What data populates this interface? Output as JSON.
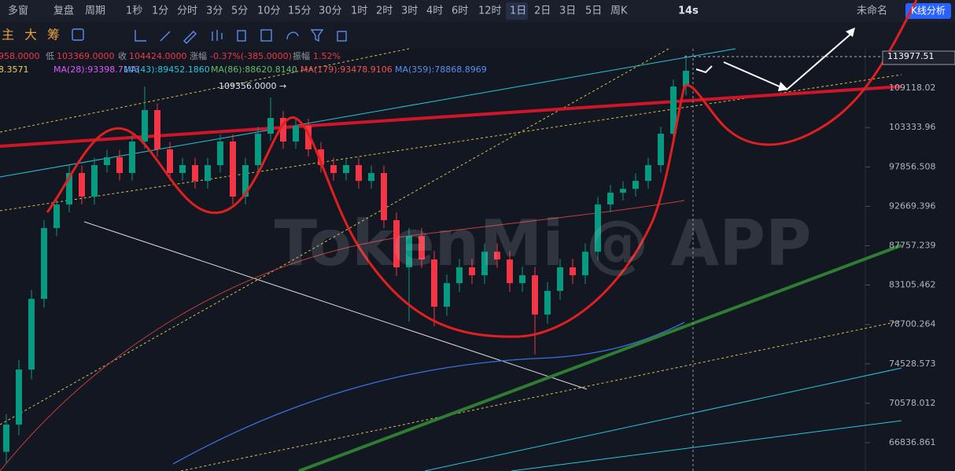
{
  "toolbar": {
    "layout": "多窗",
    "replay": "复盘",
    "period": "周期",
    "periods": [
      "1秒",
      "1分",
      "分时",
      "3分",
      "5分",
      "10分",
      "15分",
      "30分",
      "1时",
      "2时",
      "3时",
      "4时",
      "6时",
      "12时",
      "1日",
      "2日",
      "3日",
      "5日",
      "周K"
    ],
    "timer": "14s",
    "workspace": "未命名",
    "analysis": "K线分析"
  },
  "indicator_tabs": [
    "主",
    "大",
    "筹"
  ],
  "info": [
    "958.0000",
    "低",
    "103369.0000",
    "收",
    "104424.0000",
    "涨幅",
    "-0.37%(-385.0000)",
    "振幅",
    "1.52%"
  ],
  "ma": [
    "8.3571",
    "MA(28):93398.7143",
    "MA(43):89452.1860",
    "MA(86):88620.8140",
    "MA(179):93478.9106",
    "MA(359):78868.8969"
  ],
  "watermark": "TokenMi @ APP",
  "chart_data": {
    "type": "candlestick",
    "log": true,
    "annotation": "109356.0000 →",
    "last_price": 113977.51,
    "up_color": "#089981",
    "down_color": "#f23645",
    "ylim": [
      64270,
      115220
    ],
    "yticks": [
      109118.02,
      103333.96,
      97856.508,
      92669.396,
      87757.239,
      83105.462,
      78700.264,
      74528.573,
      70578.012,
      66836.861
    ],
    "open": [
      66000,
      68530,
      73950,
      81540,
      89920,
      92900,
      97030,
      93920,
      98100,
      99170,
      97030,
      101350,
      105850,
      100260,
      97030,
      98100,
      95980,
      98100,
      101350,
      93920,
      98100,
      102450,
      104710,
      101350,
      103580,
      100260,
      98100,
      97030,
      98100,
      95980,
      97030,
      90910,
      85170,
      88940,
      86100,
      80660,
      83330,
      85170,
      84240,
      87030,
      86100,
      83330,
      84240,
      79790,
      82440,
      85170,
      84240,
      87030,
      92900,
      94430,
      94940,
      95980,
      98100,
      102450,
      109360
    ],
    "high": [
      69530,
      74950,
      82540,
      90920,
      93900,
      98030,
      98030,
      99100,
      100170,
      100170,
      102350,
      109356,
      106850,
      101260,
      99100,
      99100,
      99100,
      102350,
      102350,
      99100,
      103450,
      107710,
      105710,
      104580,
      104580,
      101260,
      99100,
      99100,
      99100,
      98030,
      98030,
      91910,
      89940,
      89940,
      87100,
      84330,
      86170,
      86170,
      88030,
      88030,
      87100,
      85240,
      85240,
      83440,
      86170,
      86170,
      88030,
      93900,
      95430,
      95940,
      96980,
      99100,
      103450,
      110360,
      114210
    ],
    "low": [
      65000,
      67530,
      72950,
      80540,
      88920,
      91900,
      92920,
      92920,
      97100,
      96030,
      96030,
      100350,
      99260,
      96030,
      96030,
      94980,
      94980,
      97100,
      92920,
      92920,
      97100,
      101450,
      100350,
      100350,
      99260,
      97100,
      96030,
      96030,
      94980,
      94980,
      89910,
      84170,
      79000,
      85100,
      78500,
      79660,
      82330,
      83240,
      83240,
      85100,
      82330,
      82330,
      75500,
      78790,
      81440,
      83240,
      83240,
      86030,
      91900,
      93430,
      93940,
      94980,
      97100,
      101450,
      108000
    ],
    "close": [
      68530,
      73950,
      81540,
      89920,
      92900,
      97030,
      93920,
      98100,
      99170,
      97030,
      101350,
      105850,
      100260,
      97030,
      98100,
      95980,
      98100,
      101350,
      93920,
      98100,
      102450,
      104710,
      101350,
      103580,
      100260,
      98100,
      97030,
      98100,
      95980,
      97030,
      90910,
      85170,
      88940,
      86100,
      80660,
      83330,
      85170,
      84240,
      87030,
      86100,
      83330,
      84240,
      79790,
      82440,
      85170,
      84240,
      87030,
      92900,
      94430,
      94940,
      95980,
      98100,
      102450,
      109360,
      111760
    ]
  }
}
